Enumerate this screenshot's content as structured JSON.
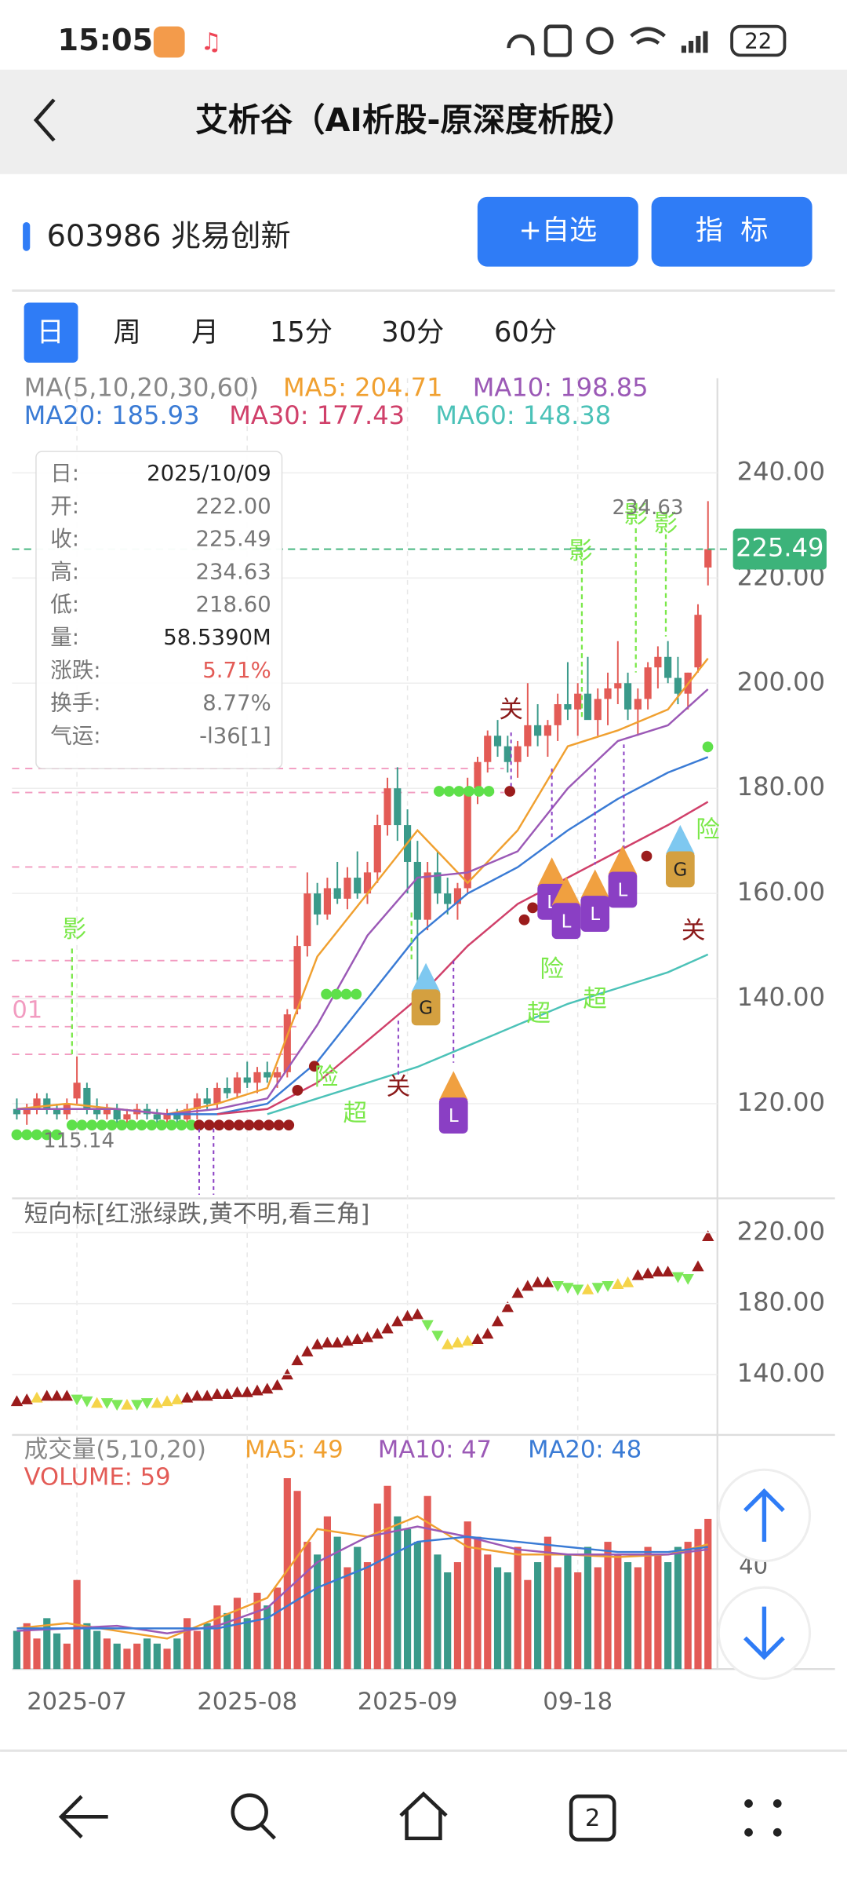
{
  "status_bar": {
    "time": "15:05",
    "battery": 22
  },
  "header": {
    "title": "艾析谷（AI析股-原深度析股）"
  },
  "stock": {
    "name": "603986 兆易创新",
    "buttons": [
      "+自选",
      "指  标"
    ]
  },
  "tabs": [
    "日",
    "周",
    "月",
    "15分",
    "30分",
    "60分"
  ],
  "info_box": [
    {
      "label": "日:",
      "value": "2025/10/09"
    },
    {
      "label": "开:",
      "value": "222.00"
    },
    {
      "label": "收:",
      "value": "225.49"
    },
    {
      "label": "高:",
      "value": "234.63"
    },
    {
      "label": "低:",
      "value": "218.60"
    },
    {
      "label": "量:",
      "value": "58.5390M"
    },
    {
      "label": "涨跌:",
      "value": "5.71%"
    },
    {
      "label": "换手:",
      "value": "8.77%"
    },
    {
      "label": "气运:",
      "value": "-l36[1]"
    }
  ],
  "chart_data": {
    "type": "candlestick",
    "ma_title": "MA(5,10,20,30,60)",
    "colors": {
      "up": "#e35b56",
      "down": "#3a9a8a"
    },
    "candles": [
      [
        119,
        121,
        117,
        118
      ],
      [
        118,
        120,
        116,
        119
      ],
      [
        119,
        122,
        118,
        121
      ],
      [
        121,
        122,
        118,
        119
      ],
      [
        119,
        120,
        117,
        118
      ],
      [
        118,
        121,
        117,
        120
      ],
      [
        121,
        129,
        120,
        124
      ],
      [
        123,
        124,
        118,
        119
      ],
      [
        119,
        121,
        117,
        118
      ],
      [
        118,
        120,
        117,
        119
      ],
      [
        119,
        120,
        116,
        117
      ],
      [
        117,
        119,
        116,
        118
      ],
      [
        118,
        120,
        117,
        119
      ],
      [
        119,
        120,
        117,
        118
      ],
      [
        118,
        119,
        116,
        117
      ],
      [
        117,
        119,
        116,
        118
      ],
      [
        118,
        119,
        116,
        117
      ],
      [
        117,
        120,
        116,
        119
      ],
      [
        119,
        122,
        117,
        121
      ],
      [
        121,
        123,
        119,
        120
      ],
      [
        120,
        124,
        119,
        123
      ],
      [
        123,
        125,
        121,
        122
      ],
      [
        122,
        126,
        121,
        125
      ],
      [
        125,
        128,
        123,
        124
      ],
      [
        124,
        127,
        122,
        126
      ],
      [
        126,
        128,
        124,
        125
      ],
      [
        125,
        127,
        123,
        126
      ],
      [
        126,
        138,
        125,
        137
      ],
      [
        138,
        152,
        137,
        150
      ],
      [
        150,
        164,
        148,
        160
      ],
      [
        160,
        162,
        154,
        156
      ],
      [
        156,
        163,
        155,
        161
      ],
      [
        161,
        166,
        158,
        159
      ],
      [
        159,
        165,
        157,
        163
      ],
      [
        163,
        168,
        159,
        160
      ],
      [
        160,
        166,
        158,
        164
      ],
      [
        164,
        175,
        162,
        173
      ],
      [
        173,
        182,
        171,
        180
      ],
      [
        180,
        184,
        170,
        173
      ],
      [
        173,
        176,
        160,
        166
      ],
      [
        166,
        170,
        140,
        155
      ],
      [
        155,
        166,
        153,
        164
      ],
      [
        164,
        168,
        158,
        160
      ],
      [
        160,
        163,
        156,
        158
      ],
      [
        158,
        162,
        155,
        161
      ],
      [
        161,
        182,
        160,
        180
      ],
      [
        180,
        186,
        177,
        185
      ],
      [
        185,
        191,
        183,
        190
      ],
      [
        190,
        193,
        186,
        188
      ],
      [
        188,
        190,
        183,
        185
      ],
      [
        185,
        189,
        182,
        188
      ],
      [
        188,
        200,
        186,
        192
      ],
      [
        192,
        196,
        188,
        190
      ],
      [
        190,
        193,
        186,
        192
      ],
      [
        192,
        198,
        189,
        196
      ],
      [
        196,
        204,
        193,
        195
      ],
      [
        195,
        200,
        190,
        198
      ],
      [
        198,
        205,
        194,
        193
      ],
      [
        193,
        199,
        190,
        197
      ],
      [
        197,
        202,
        192,
        199
      ],
      [
        199,
        208,
        196,
        200
      ],
      [
        200,
        202,
        193,
        195
      ],
      [
        195,
        199,
        190,
        197
      ],
      [
        197,
        204,
        195,
        203
      ],
      [
        203,
        207,
        199,
        205
      ],
      [
        205,
        208,
        200,
        201
      ],
      [
        201,
        205,
        196,
        198
      ],
      [
        198,
        202,
        195,
        202
      ],
      [
        203,
        215,
        202,
        213
      ],
      [
        222,
        234.63,
        218.6,
        225.49
      ]
    ],
    "ylim": [
      102,
      258
    ],
    "yticks": [
      {
        "value": 240,
        "label": "240.00"
      },
      {
        "value": 220,
        "label": "220.00"
      },
      {
        "value": 200,
        "label": "200.00"
      },
      {
        "value": 180,
        "label": "180.00"
      },
      {
        "value": 160,
        "label": "160.00"
      },
      {
        "value": 140,
        "label": "140.00"
      },
      {
        "value": 120,
        "label": "120.00"
      }
    ],
    "xticks": [
      {
        "value": 6,
        "label": "2025-07"
      },
      {
        "value": 23,
        "label": "2025-08"
      },
      {
        "value": 39,
        "label": "2025-09"
      },
      {
        "value": 56,
        "label": "09-18"
      }
    ],
    "last_price": 225.49,
    "high_mark": 234.63,
    "low_mark": 115.14,
    "left_label": "01",
    "ma_series": [
      {
        "name": "MA5: 204.71",
        "color": "#f0a030",
        "x": [
          0,
          5,
          10,
          15,
          20,
          25,
          30,
          35,
          40,
          45,
          50,
          55,
          60,
          65,
          69
        ],
        "values": [
          119,
          120,
          119,
          118,
          120,
          123,
          148,
          160,
          172,
          162,
          172,
          188,
          191,
          195,
          204.71
        ]
      },
      {
        "name": "MA10: 198.85",
        "color": "#9b59b6",
        "x": [
          0,
          5,
          10,
          15,
          20,
          25,
          30,
          35,
          40,
          45,
          50,
          55,
          60,
          65,
          69
        ],
        "values": [
          119,
          119,
          119,
          118,
          119,
          121,
          135,
          152,
          163,
          164,
          168,
          180,
          189,
          192,
          198.85
        ]
      },
      {
        "name": "MA20: 185.93",
        "color": "#3a7bd5",
        "x": [
          15,
          20,
          25,
          30,
          35,
          40,
          45,
          50,
          55,
          60,
          65,
          69
        ],
        "values": [
          118,
          118,
          120,
          128,
          140,
          152,
          160,
          165,
          172,
          178,
          183,
          185.93
        ]
      },
      {
        "name": "MA30: 177.43",
        "color": "#d0406a",
        "x": [
          20,
          25,
          30,
          35,
          40,
          45,
          50,
          55,
          60,
          65,
          69
        ],
        "values": [
          118,
          119,
          124,
          132,
          140,
          150,
          158,
          163,
          168,
          173,
          177.43
        ]
      },
      {
        "name": "MA60: 148.38",
        "color": "#4cc2b8",
        "x": [
          25,
          30,
          35,
          40,
          45,
          50,
          55,
          60,
          65,
          69
        ],
        "values": [
          118,
          121,
          124,
          127,
          131,
          135,
          139,
          142,
          145,
          148.38
        ]
      }
    ],
    "annotations": [
      "影",
      "影",
      "影",
      "影",
      "险",
      "险",
      "险",
      "超",
      "超",
      "超",
      "关",
      "关",
      "关",
      "G",
      "G",
      "L",
      "L",
      "L",
      "L",
      "L"
    ],
    "indicator": {
      "title": "短向标[红涨绿跌,黄不明,看三角]",
      "ylim": [
        106,
        238
      ],
      "yticks": [
        {
          "value": 220,
          "label": "220.00"
        },
        {
          "value": 180,
          "label": "180.00"
        },
        {
          "value": 140,
          "label": "140.00"
        }
      ],
      "palette": {
        "up": "#9b1c1c",
        "down": "#7ee85a",
        "flat": "#f5d44a"
      },
      "values": [
        125,
        126,
        127,
        128,
        128,
        128,
        126,
        125,
        124,
        124,
        123,
        123,
        123,
        124,
        124,
        125,
        126,
        127,
        128,
        128,
        129,
        129,
        130,
        130,
        131,
        132,
        134,
        140,
        148,
        153,
        157,
        158,
        158,
        159,
        160,
        161,
        163,
        166,
        170,
        173,
        174,
        168,
        162,
        157,
        158,
        159,
        160,
        163,
        170,
        178,
        186,
        190,
        192,
        192,
        190,
        189,
        188,
        188,
        189,
        190,
        191,
        192,
        196,
        197,
        198,
        198,
        195,
        194,
        201,
        218
      ],
      "states": [
        "up",
        "up",
        "flat",
        "up",
        "up",
        "up",
        "down",
        "down",
        "flat",
        "down",
        "down",
        "flat",
        "down",
        "down",
        "flat",
        "flat",
        "flat",
        "up",
        "up",
        "up",
        "up",
        "up",
        "up",
        "up",
        "up",
        "up",
        "up",
        "up",
        "up",
        "up",
        "up",
        "up",
        "up",
        "up",
        "up",
        "up",
        "up",
        "up",
        "up",
        "up",
        "up",
        "down",
        "down",
        "flat",
        "flat",
        "flat",
        "up",
        "up",
        "up",
        "up",
        "up",
        "up",
        "up",
        "up",
        "down",
        "down",
        "down",
        "flat",
        "down",
        "down",
        "flat",
        "flat",
        "up",
        "up",
        "up",
        "up",
        "down",
        "down",
        "up",
        "up"
      ]
    },
    "volume": {
      "title": "成交量(5,10,20)",
      "label": "VOLUME: 59",
      "ylim": [
        0,
        92
      ],
      "yticks": [
        40
      ],
      "values": [
        15,
        18,
        12,
        20,
        14,
        10,
        35,
        18,
        15,
        12,
        10,
        8,
        10,
        12,
        10,
        8,
        12,
        20,
        15,
        18,
        25,
        22,
        28,
        20,
        30,
        25,
        32,
        75,
        70,
        50,
        45,
        60,
        52,
        40,
        48,
        42,
        65,
        72,
        60,
        55,
        50,
        68,
        45,
        38,
        42,
        58,
        52,
        45,
        40,
        38,
        48,
        35,
        42,
        52,
        40,
        45,
        38,
        48,
        40,
        50,
        45,
        42,
        40,
        48,
        45,
        42,
        48,
        50,
        55,
        59
      ],
      "ma_series": [
        {
          "name": "MA5: 49",
          "color": "#f0a030",
          "x": [
            0,
            5,
            10,
            15,
            20,
            25,
            30,
            35,
            40,
            45,
            50,
            55,
            60,
            65,
            69
          ],
          "values": [
            16,
            18,
            15,
            12,
            20,
            28,
            55,
            52,
            60,
            48,
            45,
            45,
            44,
            45,
            49
          ]
        },
        {
          "name": "MA10: 47",
          "color": "#9b59b6",
          "x": [
            0,
            5,
            10,
            15,
            20,
            25,
            30,
            35,
            40,
            45,
            50,
            55,
            60,
            65,
            69
          ],
          "values": [
            15,
            16,
            17,
            14,
            17,
            24,
            42,
            52,
            56,
            52,
            47,
            45,
            45,
            45,
            47
          ]
        },
        {
          "name": "MA20: 48",
          "color": "#3a7bd5",
          "x": [
            0,
            5,
            10,
            15,
            20,
            25,
            30,
            35,
            40,
            45,
            50,
            55,
            60,
            65,
            69
          ],
          "values": [
            16,
            16,
            16,
            16,
            16,
            20,
            32,
            40,
            50,
            52,
            50,
            48,
            46,
            46,
            48
          ]
        }
      ]
    }
  },
  "nav": {
    "tab_count": 2
  }
}
